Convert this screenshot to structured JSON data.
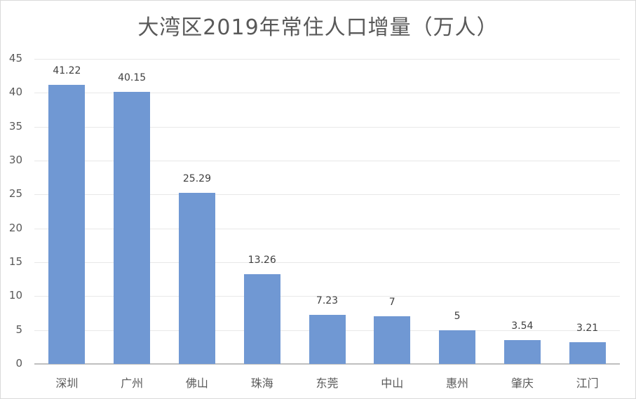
{
  "chart_data": {
    "type": "bar",
    "title": "大湾区2019年常住人口增量（万人）",
    "xlabel": "",
    "ylabel": "",
    "categories": [
      "深圳",
      "广州",
      "佛山",
      "珠海",
      "东莞",
      "中山",
      "惠州",
      "肇庆",
      "江门"
    ],
    "values": [
      41.22,
      40.15,
      25.29,
      13.26,
      7.23,
      7,
      5,
      3.54,
      3.21
    ],
    "value_labels": [
      "41.22",
      "40.15",
      "25.29",
      "13.26",
      "7.23",
      "7",
      "5",
      "3.54",
      "3.21"
    ],
    "ylim": [
      0,
      45
    ],
    "yticks": [
      0,
      5,
      10,
      15,
      20,
      25,
      30,
      35,
      40,
      45
    ],
    "grid": true,
    "legend": null,
    "bar_color": "#7098d3"
  }
}
